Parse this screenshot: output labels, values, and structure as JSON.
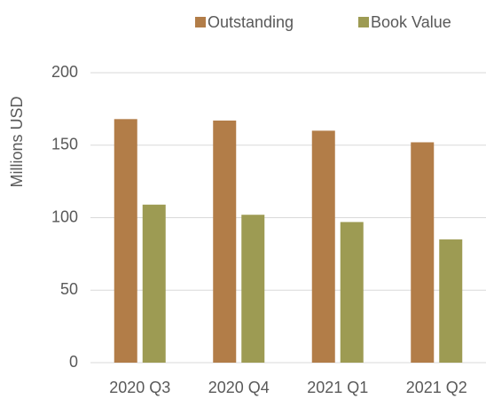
{
  "chart_data": {
    "type": "bar",
    "y_label": "Millions USD",
    "categories": [
      "2020 Q3",
      "2020 Q4",
      "2021 Q1",
      "2021 Q2"
    ],
    "series": [
      {
        "name": "Outstanding",
        "color": "#b27d48",
        "values": [
          168,
          167,
          160,
          152
        ]
      },
      {
        "name": "Book Value",
        "color": "#9d9b53",
        "values": [
          109,
          102,
          97,
          85
        ]
      }
    ],
    "ylim": [
      0,
      200
    ],
    "yticks": [
      0,
      50,
      100,
      150,
      200
    ],
    "grid": true,
    "legend": "top"
  }
}
